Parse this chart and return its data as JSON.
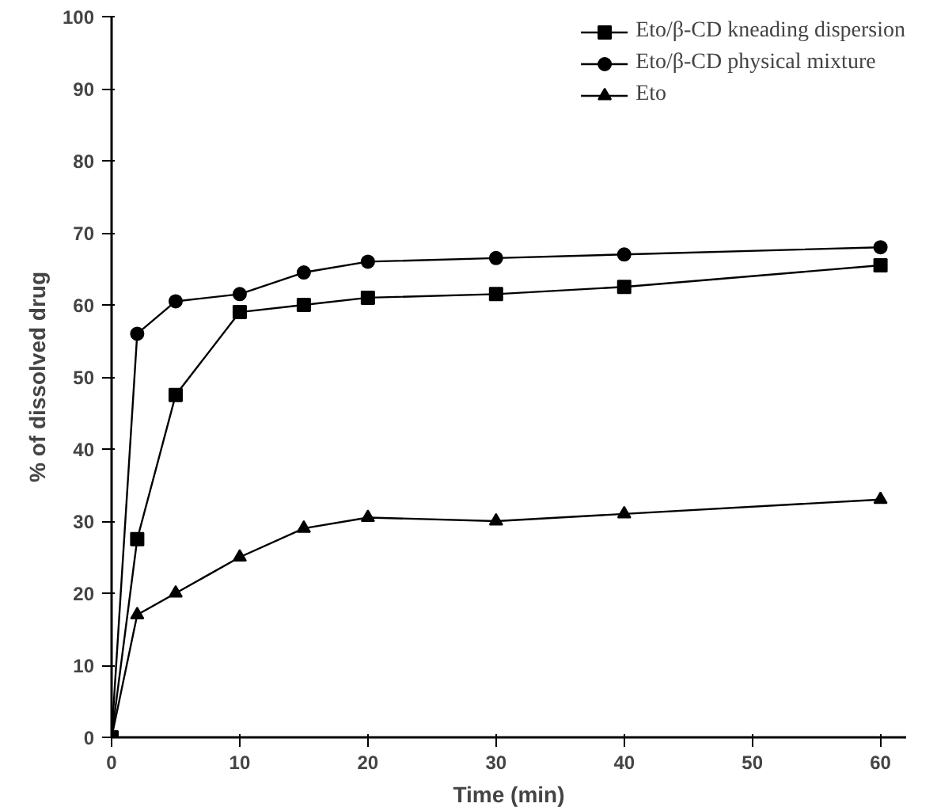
{
  "chart_data": {
    "type": "line",
    "xlabel": "Time (min)",
    "ylabel": "% of dissolved drug",
    "x": [
      0,
      2,
      5,
      10,
      15,
      20,
      30,
      40,
      60
    ],
    "series": [
      {
        "name": "Eto/β-CD kneading dispersion",
        "color": "#000000",
        "marker": "square",
        "values": [
          0,
          27.5,
          47.5,
          59,
          60,
          61,
          61.5,
          62.5,
          65.5
        ]
      },
      {
        "name": "Eto/β-CD physical mixture",
        "color": "#000000",
        "marker": "circle",
        "values": [
          0,
          56,
          60.5,
          61.5,
          64.5,
          66,
          66.5,
          67,
          68
        ]
      },
      {
        "name": "Eto",
        "color": "#000000",
        "marker": "triangle",
        "values": [
          0,
          17,
          20,
          25,
          29,
          30.5,
          30,
          31,
          33
        ]
      }
    ],
    "xlim": [
      0,
      62
    ],
    "ylim": [
      0,
      100
    ],
    "xticks": [
      0,
      10,
      20,
      30,
      40,
      50,
      60
    ],
    "yticks": [
      0,
      10,
      20,
      30,
      40,
      50,
      60,
      70,
      80,
      90,
      100
    ],
    "legend": "top right",
    "grid": false,
    "line_style": "solid"
  }
}
